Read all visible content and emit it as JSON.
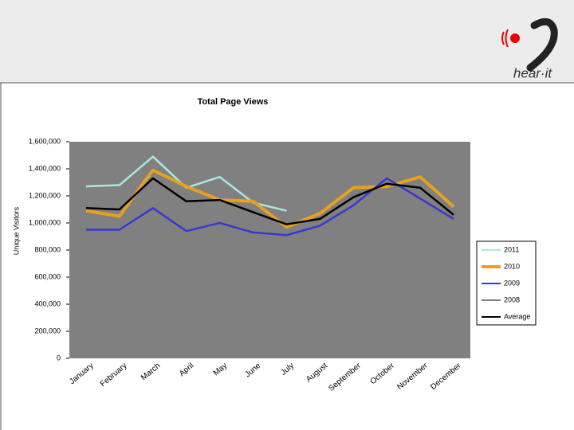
{
  "logo": "hear·it",
  "chart_data": {
    "type": "line",
    "title": "Total Page Views",
    "y_label": "Unique Visitors",
    "categories": [
      "January",
      "February",
      "March",
      "April",
      "May",
      "June",
      "July",
      "August",
      "September",
      "October",
      "November",
      "December"
    ],
    "ylim": [
      0,
      1600000
    ],
    "yticks": [
      0,
      {
        "value": 200000,
        "label": "200,000"
      },
      {
        "value": 400000,
        "label": "400,000"
      },
      {
        "value": 600000,
        "label": "600,000"
      },
      {
        "value": 800000,
        "label": "800,000"
      },
      {
        "value": 1000000,
        "label": "1,000,000"
      },
      {
        "value": 1200000,
        "label": "1,200,000"
      },
      {
        "value": 1400000,
        "label": "1,400,000"
      },
      {
        "value": 1600000,
        "label": "1,600,000"
      }
    ],
    "series": [
      {
        "name": "2011",
        "color": "#a8e8df",
        "values": [
          1270000,
          1280000,
          1490000,
          1260000,
          1340000,
          1150000,
          1090000,
          null,
          null,
          null,
          null,
          null
        ]
      },
      {
        "name": "2010",
        "color": "#e8a020",
        "values": [
          1090000,
          1050000,
          1390000,
          1270000,
          1170000,
          1160000,
          970000,
          1070000,
          1260000,
          1270000,
          1340000,
          1120000
        ]
      },
      {
        "name": "2009",
        "color": "#3838d0",
        "values": [
          950000,
          950000,
          1110000,
          940000,
          1000000,
          930000,
          910000,
          980000,
          1130000,
          1330000,
          1180000,
          1030000
        ]
      },
      {
        "name": "2008",
        "color": "#808080",
        "values": [
          null,
          null,
          null,
          null,
          null,
          null,
          null,
          null,
          null,
          null,
          null,
          null
        ]
      },
      {
        "name": "Average",
        "color": "#000000",
        "values": [
          1110000,
          1100000,
          1330000,
          1160000,
          1170000,
          1080000,
          990000,
          1030000,
          1190000,
          1290000,
          1260000,
          1060000
        ]
      }
    ]
  }
}
